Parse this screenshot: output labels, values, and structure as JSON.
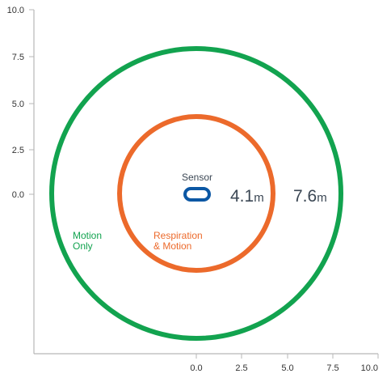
{
  "diagram": {
    "axes": {
      "x_ticks": [
        "0.0",
        "2.5",
        "5.0",
        "7.5",
        "10.0"
      ],
      "y_ticks": [
        "10.0",
        "7.5",
        "5.0",
        "2.5",
        "0.0"
      ]
    },
    "sensor": {
      "label": "Sensor",
      "color": "#0b57a4"
    },
    "zones": [
      {
        "name_line1": "Respiration",
        "name_line2": "& Motion",
        "radius_value": "4.1",
        "unit": "m",
        "radius_m": 4.1,
        "color": "#ec6a2b"
      },
      {
        "name_line1": "Motion",
        "name_line2": "Only",
        "radius_value": "7.6",
        "unit": "m",
        "radius_m": 7.6,
        "color": "#12a34f"
      }
    ],
    "axis_color": "#b7b7b7"
  }
}
